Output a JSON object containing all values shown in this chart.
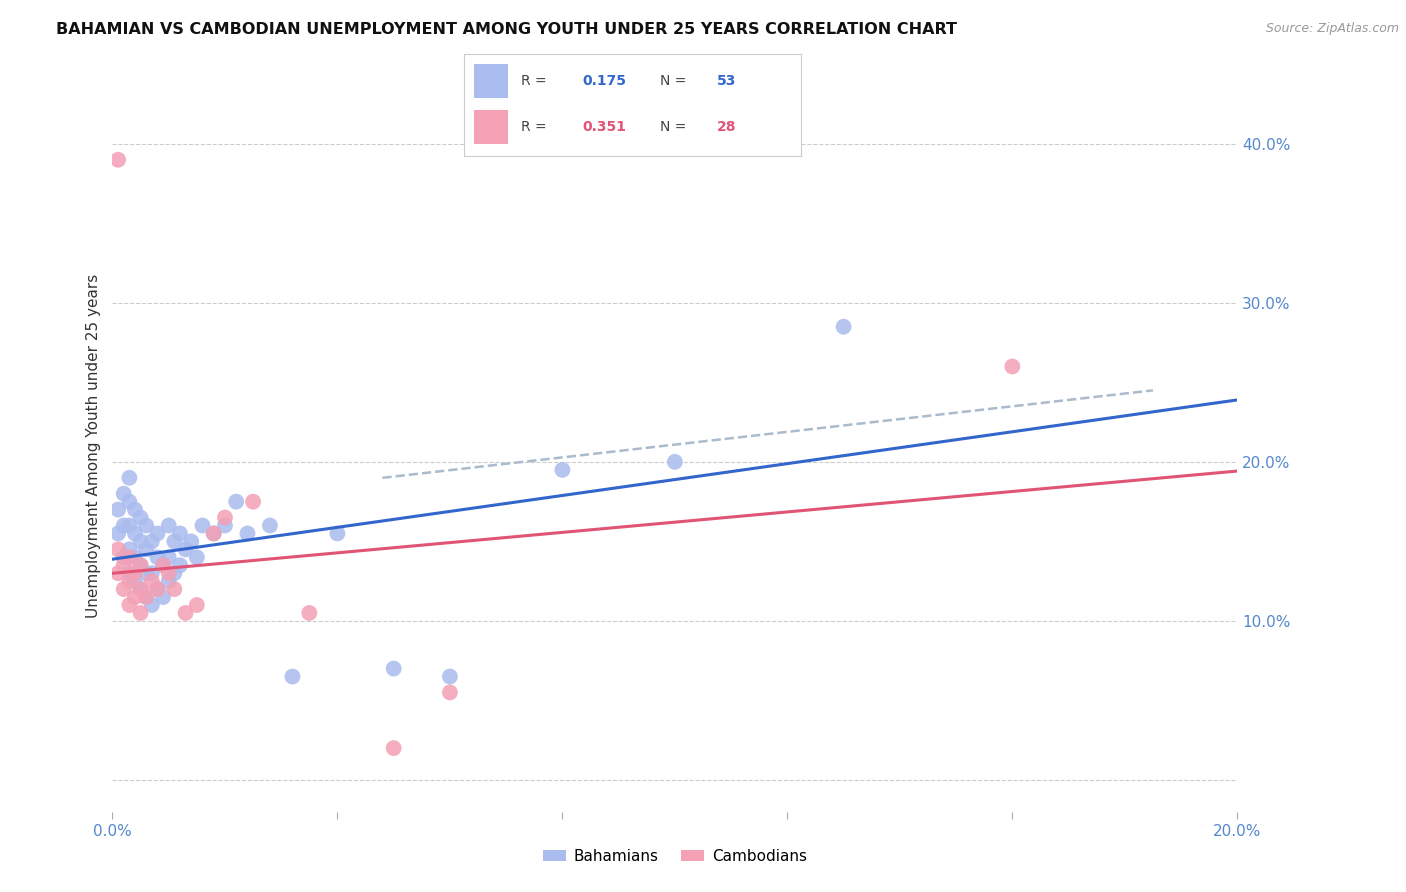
{
  "title": "BAHAMIAN VS CAMBODIAN UNEMPLOYMENT AMONG YOUTH UNDER 25 YEARS CORRELATION CHART",
  "source": "Source: ZipAtlas.com",
  "ylabel": "Unemployment Among Youth under 25 years",
  "xlim": [
    0.0,
    0.2
  ],
  "ylim": [
    -0.02,
    0.44
  ],
  "xticks": [
    0.0,
    0.04,
    0.08,
    0.12,
    0.16,
    0.2
  ],
  "xtick_labels": [
    "0.0%",
    "",
    "",
    "",
    "",
    "20.0%"
  ],
  "yticks_right": [
    0.1,
    0.2,
    0.3,
    0.4
  ],
  "ytick_labels_right": [
    "10.0%",
    "20.0%",
    "30.0%",
    "40.0%"
  ],
  "grid_color": "#cccccc",
  "background_color": "#ffffff",
  "bahamian_color": "#aabbee",
  "cambodian_color": "#f4a0b5",
  "bahamian_line_color": "#3366cc",
  "cambodian_line_color": "#e05575",
  "dashed_line_color": "#aabbcc",
  "R_bahamian": 0.175,
  "N_bahamian": 53,
  "R_cambodian": 0.351,
  "N_cambodian": 28,
  "bahamian_scatter_x": [
    0.001,
    0.001,
    0.002,
    0.002,
    0.002,
    0.003,
    0.003,
    0.003,
    0.003,
    0.003,
    0.004,
    0.004,
    0.004,
    0.004,
    0.005,
    0.005,
    0.005,
    0.005,
    0.006,
    0.006,
    0.006,
    0.006,
    0.007,
    0.007,
    0.007,
    0.008,
    0.008,
    0.008,
    0.009,
    0.009,
    0.01,
    0.01,
    0.01,
    0.011,
    0.011,
    0.012,
    0.012,
    0.013,
    0.014,
    0.015,
    0.016,
    0.018,
    0.02,
    0.022,
    0.024,
    0.028,
    0.032,
    0.04,
    0.05,
    0.06,
    0.08,
    0.1,
    0.13
  ],
  "bahamian_scatter_y": [
    0.155,
    0.17,
    0.14,
    0.16,
    0.18,
    0.13,
    0.145,
    0.16,
    0.175,
    0.19,
    0.125,
    0.14,
    0.155,
    0.17,
    0.12,
    0.135,
    0.15,
    0.165,
    0.115,
    0.13,
    0.145,
    0.16,
    0.11,
    0.13,
    0.15,
    0.12,
    0.14,
    0.155,
    0.115,
    0.135,
    0.125,
    0.14,
    0.16,
    0.13,
    0.15,
    0.135,
    0.155,
    0.145,
    0.15,
    0.14,
    0.16,
    0.155,
    0.16,
    0.175,
    0.155,
    0.16,
    0.065,
    0.155,
    0.07,
    0.065,
    0.195,
    0.2,
    0.285
  ],
  "cambodian_scatter_x": [
    0.001,
    0.001,
    0.002,
    0.002,
    0.003,
    0.003,
    0.003,
    0.004,
    0.004,
    0.005,
    0.005,
    0.005,
    0.006,
    0.007,
    0.008,
    0.009,
    0.01,
    0.011,
    0.013,
    0.015,
    0.018,
    0.02,
    0.025,
    0.035,
    0.05,
    0.06,
    0.16,
    0.001
  ],
  "cambodian_scatter_y": [
    0.13,
    0.145,
    0.12,
    0.135,
    0.11,
    0.125,
    0.14,
    0.115,
    0.13,
    0.105,
    0.12,
    0.135,
    0.115,
    0.125,
    0.12,
    0.135,
    0.13,
    0.12,
    0.105,
    0.11,
    0.155,
    0.165,
    0.175,
    0.105,
    0.02,
    0.055,
    0.26,
    0.39
  ],
  "dashed_line_x": [
    0.048,
    0.185
  ],
  "dashed_line_y": [
    0.19,
    0.245
  ]
}
